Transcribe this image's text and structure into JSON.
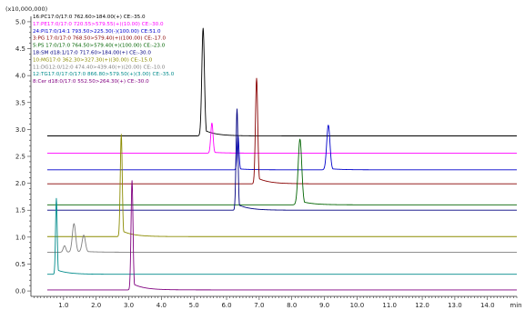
{
  "chart_data": {
    "type": "line",
    "scale_note": "(x10,000,000)",
    "xunit": "min",
    "xlim": [
      0.0,
      14.9
    ],
    "ylim": [
      -0.1,
      5.1
    ],
    "xticks": [
      "1.0",
      "2.0",
      "3.0",
      "4.0",
      "5.0",
      "6.0",
      "7.0",
      "8.0",
      "9.0",
      "10.0",
      "11.0",
      "12.0",
      "13.0",
      "14.0"
    ],
    "yticks": [
      "0.0",
      "0.5",
      "1.0",
      "1.5",
      "2.0",
      "2.5",
      "3.0",
      "3.5",
      "4.0",
      "4.5",
      "5.0"
    ],
    "grid": false,
    "legend_position": "top-left",
    "series": [
      {
        "name": "16:PC17:0/17:0 762.60>184.00(+) CE:-35.0",
        "color": "#000000",
        "baseline": 2.88,
        "peaks": [
          {
            "rt": 5.28,
            "height": 4.88,
            "width": 0.04
          }
        ]
      },
      {
        "name": "17:PE17:0/17:0 720.55>579.55(+)(10.00) CE:-30.0",
        "color": "#ff00ff",
        "baseline": 2.56,
        "peaks": [
          {
            "rt": 5.55,
            "height": 3.12,
            "width": 0.035
          }
        ]
      },
      {
        "name": "24:PI17:0/14:1 793.50>225.30(-)(100.00) CE:51.0",
        "color": "#0000cc",
        "baseline": 2.25,
        "peaks": [
          {
            "rt": 9.12,
            "height": 3.08,
            "width": 0.05
          },
          {
            "rt": 6.35,
            "height": 2.88,
            "width": 0.03
          }
        ]
      },
      {
        "name": "3:PG 17:0/17:0 768.50>579.40(+)(100.00) CE:-17.0",
        "color": "#880000",
        "baseline": 1.99,
        "peaks": [
          {
            "rt": 6.92,
            "height": 3.95,
            "width": 0.035
          }
        ]
      },
      {
        "name": "5:PS 17:0/17:0 764.50>579.40(+)(100.00) CE:-23.0",
        "color": "#006400",
        "baseline": 1.6,
        "peaks": [
          {
            "rt": 8.25,
            "height": 2.82,
            "width": 0.055
          }
        ]
      },
      {
        "name": "18:SM d18:1/17:0 717.60>184.00(+) CE:-30.0",
        "color": "#000080",
        "baseline": 1.5,
        "peaks": [
          {
            "rt": 6.32,
            "height": 3.38,
            "width": 0.03
          }
        ]
      },
      {
        "name": "10:MG17:0 362.30>327.30(+)(30.00) CE:-15.0",
        "color": "#8b8b00",
        "baseline": 1.01,
        "peaks": [
          {
            "rt": 2.77,
            "height": 2.91,
            "width": 0.03
          }
        ]
      },
      {
        "name": "11:DG12:0/12:0 474.40>439.40(+)(20.00) CE:-10.0",
        "color": "#808080",
        "baseline": 0.72,
        "peaks": [
          {
            "rt": 1.32,
            "height": 1.25,
            "width": 0.05
          },
          {
            "rt": 1.62,
            "height": 1.03,
            "width": 0.05
          },
          {
            "rt": 1.03,
            "height": 0.84,
            "width": 0.04
          }
        ]
      },
      {
        "name": "12:TG17:0/17:0/17:0 866.80>579.50(+)(3.00) CE:-35.0",
        "color": "#008b8b",
        "baseline": 0.31,
        "peaks": [
          {
            "rt": 0.78,
            "height": 1.72,
            "width": 0.025
          }
        ]
      },
      {
        "name": "8:Cer d18:0/17:0 552.50>264.30(+) CE:-30.0",
        "color": "#800080",
        "baseline": 0.02,
        "peaks": [
          {
            "rt": 3.1,
            "height": 2.05,
            "width": 0.03
          }
        ]
      }
    ]
  }
}
